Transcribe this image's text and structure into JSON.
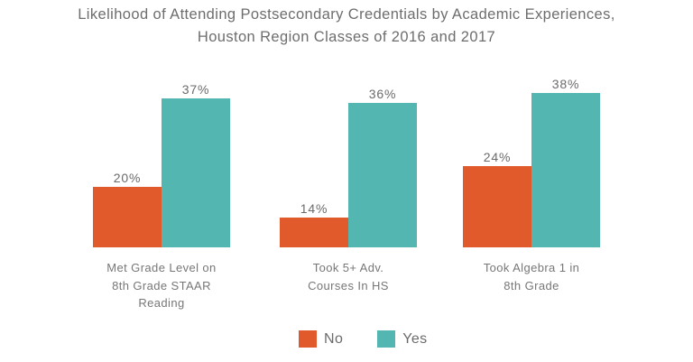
{
  "header": {
    "title_lines": [
      "Likelihood of Attending Postsecondary Credentials by Academic Experiences,",
      "Houston Region Classes of 2016 and 2017"
    ]
  },
  "chart_data": {
    "type": "bar",
    "title": "Likelihood of Attending Postsecondary Credentials by Academic Experiences, Houston Region Classes of 2016 and 2017",
    "categories": [
      "Met Grade Level on 8th Grade STAAR Reading",
      "Took 5+ Adv. Courses In HS",
      "Took Algebra 1 in 8th Grade"
    ],
    "category_label_lines": [
      [
        "Met Grade Level on",
        "8th Grade STAAR",
        "Reading"
      ],
      [
        "Took 5+ Adv.",
        "Courses In HS"
      ],
      [
        "Took Algebra 1 in",
        "8th Grade"
      ]
    ],
    "series": [
      {
        "name": "No",
        "color": "#E05A2B",
        "values": [
          20,
          14,
          24
        ]
      },
      {
        "name": "Yes",
        "color": "#54B6B0",
        "values": [
          37,
          36,
          38
        ]
      }
    ],
    "data_labels": {
      "No": [
        "20%",
        "14%",
        "24%"
      ],
      "Yes": [
        "37%",
        "36%",
        "38%"
      ]
    },
    "value_suffix": "%",
    "xlabel": "",
    "ylabel": "",
    "axis": {
      "y_min_visible": 8.3,
      "y_max": 47,
      "axes_hidden": true,
      "gridlines": false
    },
    "legend": {
      "position": "bottom",
      "entries": [
        "No",
        "Yes"
      ]
    }
  },
  "colors": {
    "background": "#FFFFFF",
    "no": "#E05A2B",
    "yes": "#54B6B0",
    "title_text": "#6D6D6D",
    "value_label_text": "#6B6B6B",
    "category_text": "#777777"
  }
}
